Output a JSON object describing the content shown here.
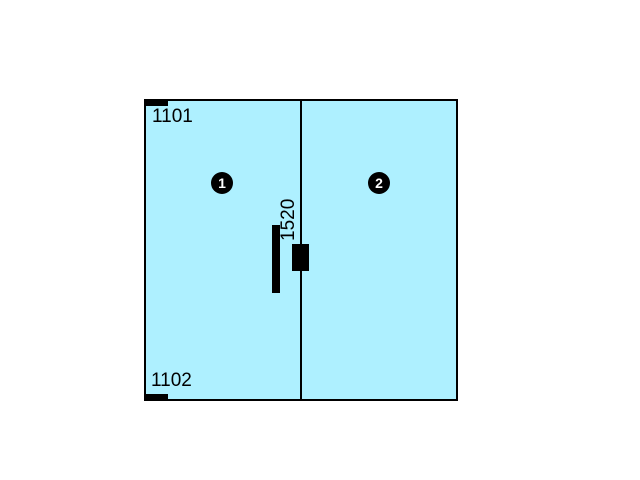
{
  "colors": {
    "panel_fill": "#aef0ff",
    "outline": "#000000",
    "badge_fill": "#000000",
    "badge_text": "#ffffff"
  },
  "panels": [
    {
      "id": "1"
    },
    {
      "id": "2"
    }
  ],
  "labels": {
    "top_left": "1101",
    "bottom_left": "1102",
    "center_vertical": "1520"
  },
  "icons": {
    "hinge": "hinge-block-icon",
    "handle": "handle-bar-icon",
    "lock": "lock-block-icon"
  }
}
